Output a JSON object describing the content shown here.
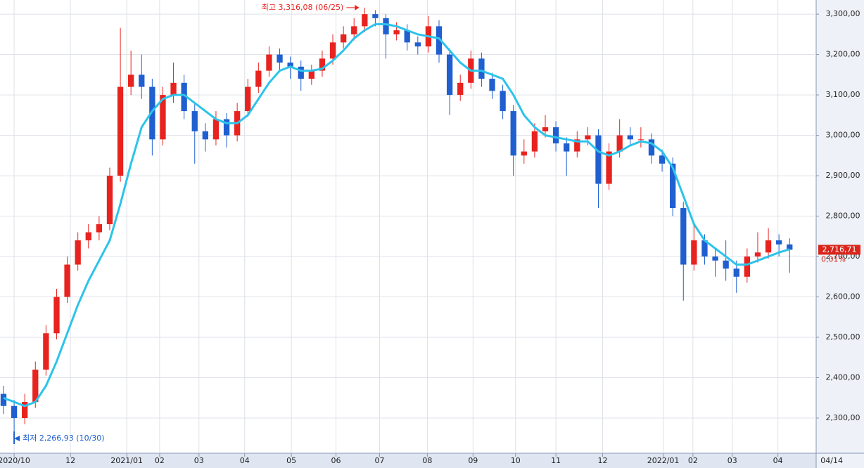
{
  "chart_data": {
    "type": "candlestick",
    "xlim": [
      -0.33,
      76.5
    ],
    "xticks": [
      {
        "value": 1.0,
        "label": "2020/10"
      },
      {
        "value": 6.3,
        "label": "12"
      },
      {
        "value": 11.6,
        "label": "2021/01"
      },
      {
        "value": 14.7,
        "label": "02"
      },
      {
        "value": 18.4,
        "label": "03"
      },
      {
        "value": 22.7,
        "label": "04"
      },
      {
        "value": 27.1,
        "label": "05"
      },
      {
        "value": 31.3,
        "label": "06"
      },
      {
        "value": 35.4,
        "label": "07"
      },
      {
        "value": 39.9,
        "label": "08"
      },
      {
        "value": 44.2,
        "label": "09"
      },
      {
        "value": 48.2,
        "label": "10"
      },
      {
        "value": 52.0,
        "label": "11"
      },
      {
        "value": 56.4,
        "label": "12"
      },
      {
        "value": 62.1,
        "label": "2022/01"
      },
      {
        "value": 64.9,
        "label": "02"
      },
      {
        "value": 68.6,
        "label": "03"
      },
      {
        "value": 72.9,
        "label": "04"
      }
    ],
    "date_label": "04/14",
    "ylim": [
      2213,
      3335
    ],
    "yticks": [
      {
        "value": 2300,
        "label": "2,300,00"
      },
      {
        "value": 2400,
        "label": "2,400,00"
      },
      {
        "value": 2500,
        "label": "2,500,00"
      },
      {
        "value": 2600,
        "label": "2,600,00"
      },
      {
        "value": 2700,
        "label": "2,700,00"
      },
      {
        "value": 2800,
        "label": "2,800,00"
      },
      {
        "value": 2900,
        "label": "2,900,00"
      },
      {
        "value": 3000,
        "label": "3,000,00"
      },
      {
        "value": 3100,
        "label": "3,100,00"
      },
      {
        "value": 3200,
        "label": "3,200,00"
      },
      {
        "value": 3300,
        "label": "3,300,00"
      }
    ],
    "grid": true,
    "up_color": "#e8231f",
    "down_color": "#1f5fd0",
    "open": [
      2360,
      2330,
      2300,
      2340,
      2420,
      2510,
      2600,
      2680,
      2740,
      2760,
      2780,
      2900,
      3120,
      3150,
      3120,
      2990,
      3100,
      3130,
      3060,
      3010,
      2990,
      3040,
      3000,
      3060,
      3120,
      3160,
      3200,
      3180,
      3170,
      3140,
      3160,
      3190,
      3230,
      3250,
      3270,
      3300,
      3290,
      3250,
      3260,
      3230,
      3220,
      3270,
      3200,
      3100,
      3130,
      3190,
      3140,
      3110,
      3060,
      2950,
      2960,
      3010,
      3020,
      2980,
      2960,
      2990,
      3000,
      2880,
      2960,
      3000,
      2990,
      2990,
      2950,
      2930,
      2820,
      2680,
      2740,
      2700,
      2690,
      2670,
      2650,
      2700,
      2710,
      2740,
      2730
    ],
    "high": [
      2380,
      2345,
      2360,
      2440,
      2530,
      2620,
      2700,
      2760,
      2780,
      2800,
      2920,
      3266,
      3210,
      3200,
      3140,
      3120,
      3180,
      3150,
      3080,
      3030,
      3060,
      3055,
      3080,
      3140,
      3180,
      3220,
      3215,
      3195,
      3185,
      3175,
      3210,
      3250,
      3270,
      3290,
      3316.08,
      3310,
      3300,
      3280,
      3275,
      3245,
      3295,
      3285,
      3215,
      3150,
      3210,
      3205,
      3155,
      3125,
      3075,
      2990,
      3030,
      3050,
      3035,
      2995,
      3010,
      3020,
      3015,
      2980,
      3040,
      3020,
      3020,
      3005,
      2965,
      2945,
      2835,
      2780,
      2755,
      2720,
      2740,
      2690,
      2720,
      2760,
      2770,
      2755,
      2745
    ],
    "low": [
      2310,
      2266.93,
      2285,
      2325,
      2405,
      2495,
      2585,
      2665,
      2720,
      2740,
      2765,
      2885,
      3100,
      3090,
      2950,
      2975,
      3080,
      3040,
      2930,
      2960,
      2975,
      2970,
      2985,
      3045,
      3105,
      3145,
      3160,
      3140,
      3110,
      3125,
      3145,
      3175,
      3215,
      3235,
      3255,
      3270,
      3190,
      3235,
      3210,
      3200,
      3205,
      3180,
      3050,
      3085,
      3115,
      3120,
      3090,
      3040,
      2900,
      2930,
      2945,
      2995,
      2960,
      2900,
      2945,
      2975,
      2820,
      2865,
      2945,
      2975,
      2970,
      2930,
      2910,
      2800,
      2591,
      2665,
      2680,
      2650,
      2640,
      2610,
      2635,
      2685,
      2695,
      2700,
      2660
    ],
    "close": [
      2330,
      2300,
      2340,
      2420,
      2510,
      2600,
      2680,
      2740,
      2760,
      2780,
      2900,
      3120,
      3150,
      3120,
      2990,
      3100,
      3130,
      3060,
      3010,
      2990,
      3040,
      3000,
      3060,
      3120,
      3160,
      3200,
      3180,
      3170,
      3140,
      3160,
      3190,
      3230,
      3250,
      3270,
      3300,
      3290,
      3250,
      3260,
      3230,
      3220,
      3270,
      3200,
      3100,
      3130,
      3190,
      3140,
      3110,
      3060,
      2950,
      2960,
      3010,
      3020,
      2980,
      2960,
      2990,
      3000,
      2880,
      2960,
      3000,
      2990,
      2990,
      2950,
      2930,
      2820,
      2680,
      2740,
      2700,
      2690,
      2670,
      2650,
      2700,
      2710,
      2740,
      2730,
      2716.71
    ],
    "ma": {
      "color": "#2cc3ea",
      "values": [
        2350,
        2340,
        2330,
        2340,
        2380,
        2440,
        2510,
        2580,
        2640,
        2690,
        2740,
        2830,
        2930,
        3020,
        3060,
        3090,
        3100,
        3100,
        3080,
        3060,
        3040,
        3030,
        3030,
        3050,
        3090,
        3130,
        3160,
        3170,
        3160,
        3160,
        3165,
        3185,
        3210,
        3240,
        3260,
        3275,
        3275,
        3270,
        3260,
        3250,
        3245,
        3240,
        3210,
        3180,
        3160,
        3160,
        3150,
        3140,
        3100,
        3050,
        3020,
        3000,
        2995,
        2990,
        2985,
        2985,
        2960,
        2950,
        2960,
        2975,
        2985,
        2980,
        2960,
        2920,
        2850,
        2780,
        2740,
        2720,
        2700,
        2680,
        2680,
        2690,
        2700,
        2710,
        2718
      ]
    },
    "high_annotation": "최고 3,316,08 (06/25)",
    "low_annotation": "최저 2,266,93 (10/30)",
    "last_label": "2,716,71",
    "change_label": "0,01%"
  }
}
